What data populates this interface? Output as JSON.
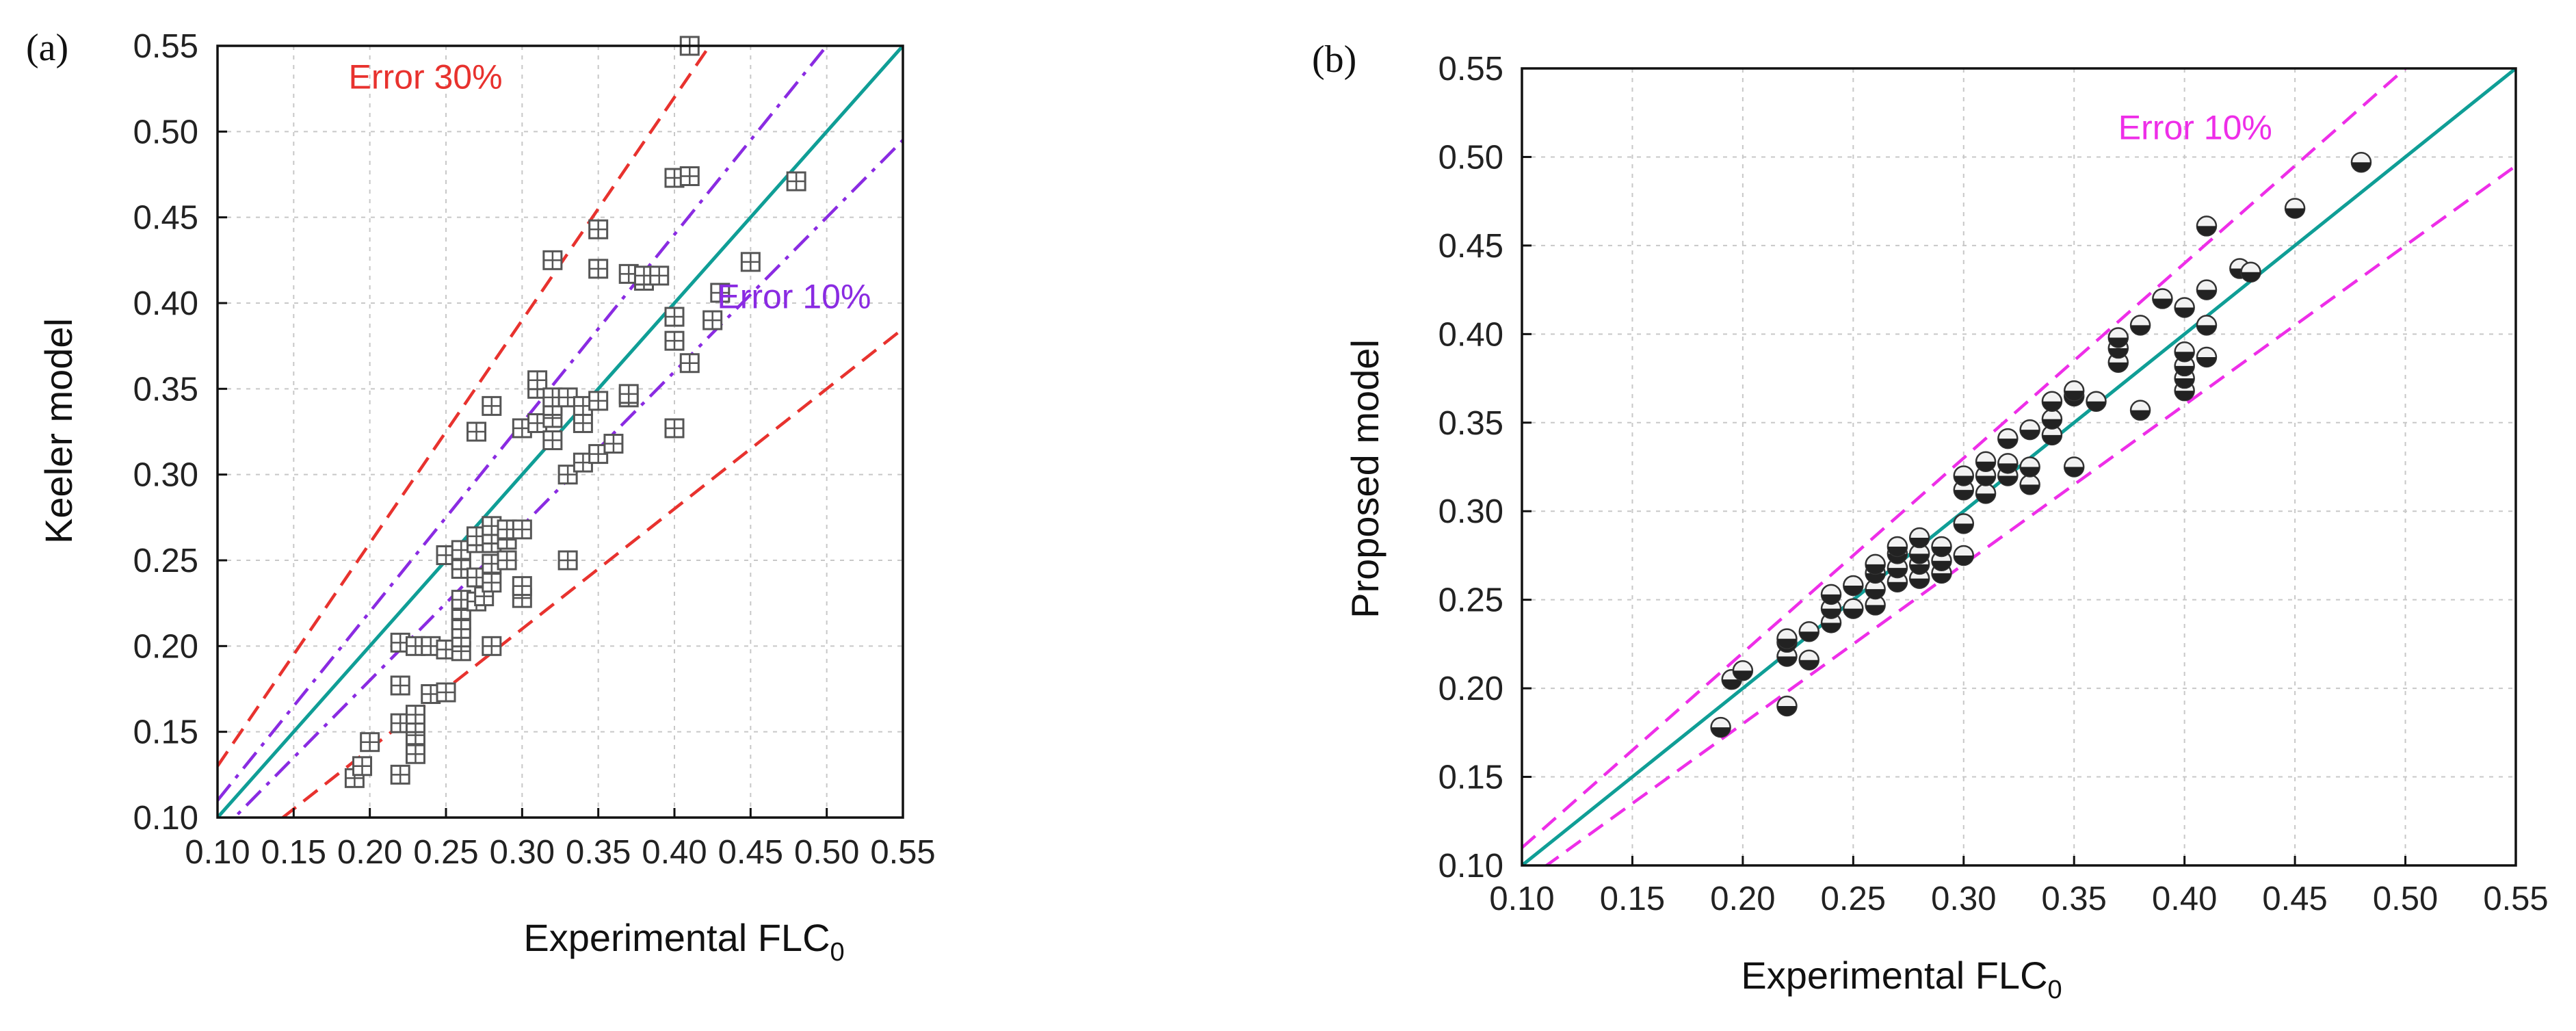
{
  "chart_data": [
    {
      "type": "scatter",
      "panel_label": "(a)",
      "xlabel": "Experimental FLC",
      "xlabel_subscript": "0",
      "ylabel": "Keeler model",
      "xlim": [
        0.1,
        0.55
      ],
      "ylim": [
        0.1,
        0.55
      ],
      "ticks": [
        "0.10",
        "0.15",
        "0.20",
        "0.25",
        "0.30",
        "0.35",
        "0.40",
        "0.45",
        "0.50",
        "0.55"
      ],
      "grid": true,
      "marker": "boxed-cross",
      "lines": [
        {
          "name": "y = x",
          "slope": 1.0,
          "color": "#0f9e96",
          "dash": "solid"
        },
        {
          "name": "+10%",
          "slope": 1.1,
          "color": "#8a2be2",
          "dash": "dashdot"
        },
        {
          "name": "-10%",
          "slope": 0.9,
          "color": "#8a2be2",
          "dash": "dashdot"
        },
        {
          "name": "+30%",
          "slope": 1.3,
          "color": "#e8322e",
          "dash": "dashed"
        },
        {
          "name": "-30%",
          "slope": 0.7,
          "color": "#e8322e",
          "dash": "dashed"
        }
      ],
      "annotations": [
        {
          "text": "Error 30%",
          "color": "#e8322e",
          "x": 0.186,
          "y": 0.525
        },
        {
          "text": "Error 10%",
          "color": "#8a2be2",
          "x": 0.428,
          "y": 0.397
        }
      ],
      "points": [
        [
          0.19,
          0.123
        ],
        [
          0.195,
          0.13
        ],
        [
          0.2,
          0.144
        ],
        [
          0.22,
          0.125
        ],
        [
          0.22,
          0.155
        ],
        [
          0.22,
          0.177
        ],
        [
          0.22,
          0.202
        ],
        [
          0.23,
          0.137
        ],
        [
          0.23,
          0.148
        ],
        [
          0.23,
          0.155
        ],
        [
          0.23,
          0.16
        ],
        [
          0.23,
          0.2
        ],
        [
          0.24,
          0.172
        ],
        [
          0.24,
          0.2
        ],
        [
          0.25,
          0.173
        ],
        [
          0.25,
          0.198
        ],
        [
          0.25,
          0.253
        ],
        [
          0.26,
          0.197
        ],
        [
          0.26,
          0.205
        ],
        [
          0.26,
          0.21
        ],
        [
          0.26,
          0.215
        ],
        [
          0.26,
          0.221
        ],
        [
          0.26,
          0.227
        ],
        [
          0.26,
          0.245
        ],
        [
          0.26,
          0.25
        ],
        [
          0.26,
          0.256
        ],
        [
          0.27,
          0.226
        ],
        [
          0.27,
          0.24
        ],
        [
          0.27,
          0.26
        ],
        [
          0.27,
          0.264
        ],
        [
          0.27,
          0.325
        ],
        [
          0.275,
          0.229
        ],
        [
          0.28,
          0.2
        ],
        [
          0.28,
          0.237
        ],
        [
          0.28,
          0.248
        ],
        [
          0.28,
          0.26
        ],
        [
          0.28,
          0.265
        ],
        [
          0.28,
          0.27
        ],
        [
          0.28,
          0.34
        ],
        [
          0.29,
          0.25
        ],
        [
          0.29,
          0.262
        ],
        [
          0.29,
          0.268
        ],
        [
          0.3,
          0.228
        ],
        [
          0.3,
          0.235
        ],
        [
          0.3,
          0.268
        ],
        [
          0.3,
          0.327
        ],
        [
          0.31,
          0.33
        ],
        [
          0.31,
          0.35
        ],
        [
          0.31,
          0.355
        ],
        [
          0.32,
          0.32
        ],
        [
          0.32,
          0.333
        ],
        [
          0.32,
          0.34
        ],
        [
          0.32,
          0.345
        ],
        [
          0.32,
          0.425
        ],
        [
          0.33,
          0.25
        ],
        [
          0.33,
          0.3
        ],
        [
          0.33,
          0.345
        ],
        [
          0.34,
          0.307
        ],
        [
          0.34,
          0.33
        ],
        [
          0.34,
          0.34
        ],
        [
          0.35,
          0.312
        ],
        [
          0.35,
          0.343
        ],
        [
          0.35,
          0.42
        ],
        [
          0.35,
          0.443
        ],
        [
          0.36,
          0.318
        ],
        [
          0.37,
          0.345
        ],
        [
          0.37,
          0.347
        ],
        [
          0.37,
          0.417
        ],
        [
          0.38,
          0.413
        ],
        [
          0.38,
          0.416
        ],
        [
          0.39,
          0.416
        ],
        [
          0.4,
          0.327
        ],
        [
          0.4,
          0.378
        ],
        [
          0.4,
          0.392
        ],
        [
          0.4,
          0.473
        ],
        [
          0.41,
          0.365
        ],
        [
          0.41,
          0.474
        ],
        [
          0.41,
          0.55
        ],
        [
          0.425,
          0.39
        ],
        [
          0.43,
          0.406
        ],
        [
          0.45,
          0.424
        ],
        [
          0.48,
          0.471
        ]
      ]
    },
    {
      "type": "scatter",
      "panel_label": "(b)",
      "xlabel": "Experimental FLC",
      "xlabel_subscript": "0",
      "ylabel": "Proposed model",
      "xlim": [
        0.1,
        0.55
      ],
      "ylim": [
        0.1,
        0.55
      ],
      "ticks": [
        "0.10",
        "0.15",
        "0.20",
        "0.25",
        "0.30",
        "0.35",
        "0.40",
        "0.45",
        "0.50",
        "0.55"
      ],
      "grid": true,
      "marker": "half-filled-circle",
      "lines": [
        {
          "name": "y = x",
          "slope": 1.0,
          "color": "#0f9e96",
          "dash": "solid"
        },
        {
          "name": "+10%",
          "slope": 1.1,
          "color": "#ee2ee8",
          "dash": "dashed"
        },
        {
          "name": "-10%",
          "slope": 0.9,
          "color": "#ee2ee8",
          "dash": "dashed"
        }
      ],
      "annotations": [
        {
          "text": "Error 10%",
          "color": "#ee2ee8",
          "x": 0.37,
          "y": 0.51
        }
      ],
      "points": [
        [
          0.19,
          0.178
        ],
        [
          0.195,
          0.205
        ],
        [
          0.2,
          0.21
        ],
        [
          0.22,
          0.19
        ],
        [
          0.22,
          0.218
        ],
        [
          0.22,
          0.226
        ],
        [
          0.22,
          0.228
        ],
        [
          0.23,
          0.216
        ],
        [
          0.23,
          0.232
        ],
        [
          0.24,
          0.237
        ],
        [
          0.24,
          0.245
        ],
        [
          0.24,
          0.253
        ],
        [
          0.25,
          0.245
        ],
        [
          0.25,
          0.258
        ],
        [
          0.26,
          0.247
        ],
        [
          0.26,
          0.256
        ],
        [
          0.26,
          0.265
        ],
        [
          0.26,
          0.27
        ],
        [
          0.27,
          0.26
        ],
        [
          0.27,
          0.268
        ],
        [
          0.27,
          0.276
        ],
        [
          0.27,
          0.28
        ],
        [
          0.28,
          0.262
        ],
        [
          0.28,
          0.27
        ],
        [
          0.28,
          0.276
        ],
        [
          0.28,
          0.285
        ],
        [
          0.29,
          0.265
        ],
        [
          0.29,
          0.272
        ],
        [
          0.29,
          0.28
        ],
        [
          0.3,
          0.275
        ],
        [
          0.3,
          0.293
        ],
        [
          0.3,
          0.312
        ],
        [
          0.3,
          0.32
        ],
        [
          0.31,
          0.31
        ],
        [
          0.31,
          0.32
        ],
        [
          0.31,
          0.328
        ],
        [
          0.32,
          0.32
        ],
        [
          0.32,
          0.327
        ],
        [
          0.32,
          0.341
        ],
        [
          0.33,
          0.315
        ],
        [
          0.33,
          0.325
        ],
        [
          0.33,
          0.346
        ],
        [
          0.34,
          0.343
        ],
        [
          0.34,
          0.352
        ],
        [
          0.34,
          0.362
        ],
        [
          0.35,
          0.325
        ],
        [
          0.35,
          0.365
        ],
        [
          0.35,
          0.368
        ],
        [
          0.36,
          0.362
        ],
        [
          0.37,
          0.384
        ],
        [
          0.37,
          0.392
        ],
        [
          0.37,
          0.398
        ],
        [
          0.38,
          0.357
        ],
        [
          0.38,
          0.405
        ],
        [
          0.39,
          0.42
        ],
        [
          0.4,
          0.368
        ],
        [
          0.4,
          0.375
        ],
        [
          0.4,
          0.382
        ],
        [
          0.4,
          0.39
        ],
        [
          0.4,
          0.415
        ],
        [
          0.41,
          0.387
        ],
        [
          0.41,
          0.405
        ],
        [
          0.41,
          0.425
        ],
        [
          0.41,
          0.461
        ],
        [
          0.425,
          0.437
        ],
        [
          0.43,
          0.435
        ],
        [
          0.45,
          0.471
        ],
        [
          0.48,
          0.497
        ]
      ]
    }
  ]
}
